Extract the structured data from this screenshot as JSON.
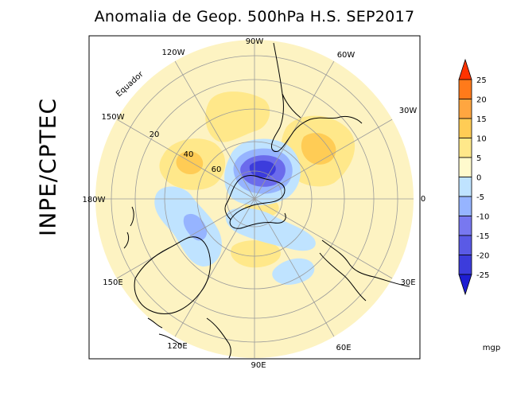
{
  "title": "Anomalia de Geop. 500hPa H.S. SEP2017",
  "side_label": "INPE/CPTEC",
  "longitude_labels": [
    "90W",
    "60W",
    "30W",
    "0",
    "30E",
    "60E",
    "90E",
    "120E",
    "150E",
    "180W",
    "150W",
    "120W"
  ],
  "latitude_labels": [
    "20",
    "40",
    "60"
  ],
  "equator_label": "Equador",
  "colorbar": {
    "levels": [
      "25",
      "20",
      "15",
      "10",
      "5",
      "0",
      "-5",
      "-10",
      "-15",
      "-20",
      "-25"
    ],
    "colors": [
      "#ff3300",
      "#ff7a1a",
      "#ffa640",
      "#ffcc55",
      "#ffe88a",
      "#fffacd",
      "#bfe3ff",
      "#96b4ff",
      "#7878f0",
      "#5a5ae6",
      "#3c3cdc",
      "#1e1ed2"
    ],
    "unit": "mgp"
  },
  "colors": {
    "background_field": "#fdf3c2",
    "positive_weak": "#ffe88a",
    "positive_strong": "#ffcc55",
    "negative_weak": "#bfe3ff",
    "negative_mid": "#96b4ff",
    "negative_strong": "#6b6bec",
    "negative_core": "#3c3cdc"
  }
}
